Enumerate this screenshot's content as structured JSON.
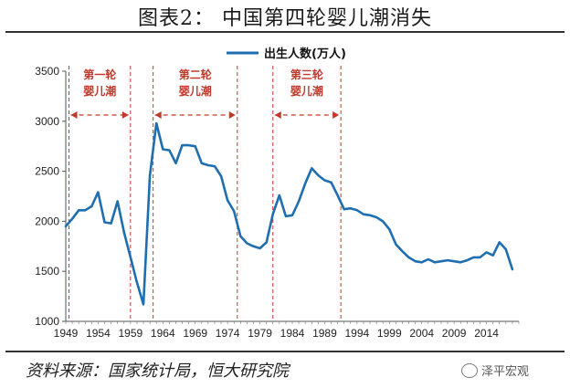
{
  "figure_title": "图表2：  中国第四轮婴儿潮消失",
  "source_text": "资料来源：国家统计局，恒大研究院",
  "watermark": "泽平宏观",
  "watermark_icon": "wechat-icon",
  "chart_data": {
    "type": "line",
    "legend": {
      "placement": "top-center",
      "entries": [
        "出生人数(万人)"
      ]
    },
    "ylim": [
      1000,
      3500
    ],
    "yticks": [
      "1000",
      "1500",
      "2000",
      "2500",
      "3000",
      "3500"
    ],
    "xlim": [
      1949,
      2019
    ],
    "xticks": [
      "1949",
      "1954",
      "1959",
      "1964",
      "1969",
      "1974",
      "1979",
      "1984",
      "1989",
      "1994",
      "1999",
      "2004",
      "2009",
      "2014"
    ],
    "grid": false,
    "series": [
      {
        "name": "出生人数(万人)",
        "color": "#1f6eb0",
        "x": [
          1949,
          1950,
          1951,
          1952,
          1953,
          1954,
          1955,
          1956,
          1957,
          1958,
          1959,
          1960,
          1961,
          1962,
          1963,
          1964,
          1965,
          1966,
          1967,
          1968,
          1969,
          1970,
          1971,
          1972,
          1973,
          1974,
          1975,
          1976,
          1977,
          1978,
          1979,
          1980,
          1981,
          1982,
          1983,
          1984,
          1985,
          1986,
          1987,
          1988,
          1989,
          1990,
          1991,
          1992,
          1993,
          1994,
          1995,
          1996,
          1997,
          1998,
          1999,
          2000,
          2001,
          2002,
          2003,
          2004,
          2005,
          2006,
          2007,
          2008,
          2009,
          2010,
          2011,
          2012,
          2013,
          2014,
          2015,
          2016,
          2017,
          2018
        ],
        "values": [
          1950,
          2025,
          2110,
          2110,
          2150,
          2290,
          1990,
          1980,
          2200,
          1890,
          1640,
          1390,
          1170,
          2460,
          2980,
          2720,
          2710,
          2580,
          2760,
          2760,
          2750,
          2580,
          2560,
          2550,
          2450,
          2210,
          2100,
          1850,
          1780,
          1750,
          1730,
          1790,
          2070,
          2260,
          2050,
          2060,
          2200,
          2380,
          2530,
          2460,
          2410,
          2390,
          2260,
          2120,
          2130,
          2110,
          2070,
          2060,
          2040,
          2000,
          1920,
          1770,
          1700,
          1640,
          1600,
          1590,
          1620,
          1590,
          1600,
          1610,
          1600,
          1590,
          1610,
          1640,
          1640,
          1690,
          1660,
          1790,
          1720,
          1520
        ]
      }
    ],
    "annotations": [
      {
        "label_line1": "第一轮",
        "label_line2": "婴儿潮",
        "x_start": 1949.5,
        "x_end": 1959
      },
      {
        "label_line1": "第二轮",
        "label_line2": "婴儿潮",
        "x_start": 1962.5,
        "x_end": 1975.5
      },
      {
        "label_line1": "第三轮",
        "label_line2": "婴儿潮",
        "x_start": 1981,
        "x_end": 1991.5
      }
    ],
    "annotation_color": "#c0392b"
  }
}
